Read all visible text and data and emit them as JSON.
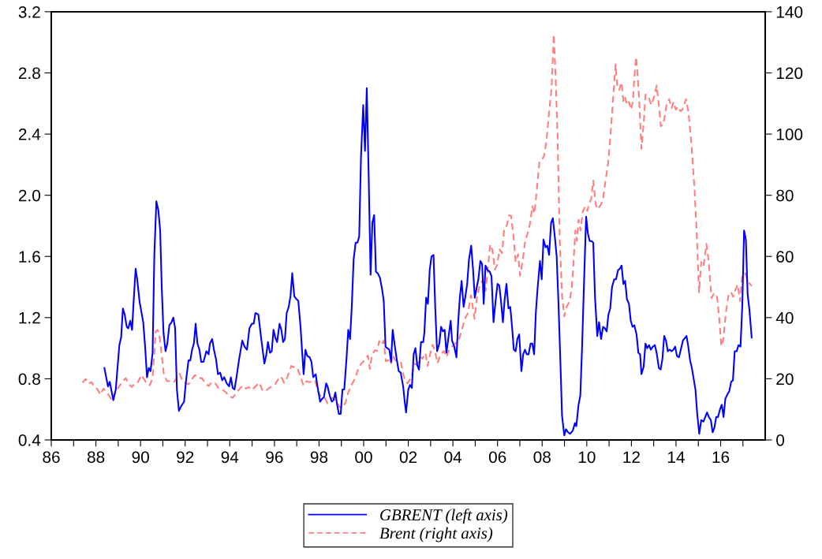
{
  "chart_data": {
    "type": "line",
    "xlim": [
      1986.0,
      2018.0
    ],
    "xticks": [
      {
        "value": 1986,
        "label": "86"
      },
      {
        "value": 1987,
        "label": null
      },
      {
        "value": 1988,
        "label": "88"
      },
      {
        "value": 1989,
        "label": null
      },
      {
        "value": 1990,
        "label": "90"
      },
      {
        "value": 1991,
        "label": null
      },
      {
        "value": 1992,
        "label": "92"
      },
      {
        "value": 1993,
        "label": null
      },
      {
        "value": 1994,
        "label": "94"
      },
      {
        "value": 1995,
        "label": null
      },
      {
        "value": 1996,
        "label": "96"
      },
      {
        "value": 1997,
        "label": null
      },
      {
        "value": 1998,
        "label": "98"
      },
      {
        "value": 1999,
        "label": null
      },
      {
        "value": 2000,
        "label": "00"
      },
      {
        "value": 2001,
        "label": null
      },
      {
        "value": 2002,
        "label": "02"
      },
      {
        "value": 2003,
        "label": null
      },
      {
        "value": 2004,
        "label": "04"
      },
      {
        "value": 2005,
        "label": null
      },
      {
        "value": 2006,
        "label": "06"
      },
      {
        "value": 2007,
        "label": null
      },
      {
        "value": 2008,
        "label": "08"
      },
      {
        "value": 2009,
        "label": null
      },
      {
        "value": 2010,
        "label": "10"
      },
      {
        "value": 2011,
        "label": null
      },
      {
        "value": 2012,
        "label": "12"
      },
      {
        "value": 2013,
        "label": null
      },
      {
        "value": 2014,
        "label": "14"
      },
      {
        "value": 2015,
        "label": null
      },
      {
        "value": 2016,
        "label": "16"
      },
      {
        "value": 2017,
        "label": null
      }
    ],
    "ylim": [
      0.4,
      3.2
    ],
    "yticks": [
      {
        "value": 0.4,
        "label": "0.4"
      },
      {
        "value": 0.8,
        "label": "0.8"
      },
      {
        "value": 1.2,
        "label": "1.2"
      },
      {
        "value": 1.6,
        "label": "1.6"
      },
      {
        "value": 2.0,
        "label": "2.0"
      },
      {
        "value": 2.4,
        "label": "2.4"
      },
      {
        "value": 2.8,
        "label": "2.8"
      },
      {
        "value": 3.2,
        "label": "3.2"
      }
    ],
    "y2lim": [
      0,
      140
    ],
    "y2ticks": [
      0,
      20,
      40,
      60,
      80,
      100,
      120,
      140
    ],
    "grid": false,
    "legend": "bottom",
    "marker": "none",
    "series": [
      {
        "name": "GBRENT (left axis)",
        "color": "#0000ff",
        "line_style": "solid",
        "x": [
          1988.38,
          1988.54,
          1988.62,
          1988.78,
          1988.89,
          1989.05,
          1989.13,
          1989.21,
          1989.29,
          1989.38,
          1989.45,
          1989.54,
          1989.62,
          1989.7,
          1989.78,
          1989.85,
          1989.96,
          1990.12,
          1990.21,
          1990.29,
          1990.37,
          1990.45,
          1990.54,
          1990.62,
          1990.71,
          1990.8,
          1990.88,
          1990.95,
          1991.03,
          1991.12,
          1991.2,
          1991.29,
          1991.39,
          1991.47,
          1991.55,
          1991.63,
          1991.72,
          1991.82,
          1991.95,
          1992.04,
          1992.15,
          1992.23,
          1992.31,
          1992.39,
          1992.47,
          1992.55,
          1992.64,
          1992.72,
          1992.82,
          1992.95,
          1993.05,
          1993.11,
          1993.21,
          1993.29,
          1993.38,
          1993.47,
          1993.57,
          1993.66,
          1993.75,
          1993.86,
          1993.97,
          1994.05,
          1994.13,
          1994.21,
          1994.29,
          1994.42,
          1994.56,
          1994.66,
          1994.77,
          1994.88,
          1994.99,
          1995.07,
          1995.15,
          1995.28,
          1995.41,
          1995.55,
          1995.63,
          1995.71,
          1995.8,
          1995.88,
          1995.96,
          1996.04,
          1996.12,
          1996.23,
          1996.31,
          1996.39,
          1996.47,
          1996.55,
          1996.64,
          1996.72,
          1996.8,
          1996.89,
          1996.99,
          1997.07,
          1997.17,
          1997.25,
          1997.31,
          1997.39,
          1997.47,
          1997.58,
          1997.66,
          1997.74,
          1997.85,
          1997.93,
          1998.05,
          1998.14,
          1998.22,
          1998.32,
          1998.38,
          1998.48,
          1998.57,
          1998.65,
          1998.73,
          1998.81,
          1998.89,
          1998.97,
          1999.05,
          1999.13,
          1999.23,
          1999.31,
          1999.39,
          1999.47,
          1999.55,
          1999.64,
          1999.72,
          1999.8,
          1999.88,
          1999.98,
          2000.06,
          2000.14,
          2000.23,
          2000.31,
          2000.39,
          2000.47,
          2000.55,
          2000.63,
          2000.73,
          2000.82,
          2000.9,
          2000.98,
          2001.06,
          2001.15,
          2001.23,
          2001.3,
          2001.39,
          2001.49,
          2001.57,
          2001.66,
          2001.77,
          2001.84,
          2001.9,
          2002.0,
          2002.08,
          2002.16,
          2002.24,
          2002.32,
          2002.4,
          2002.48,
          2002.57,
          2002.67,
          2002.72,
          2002.8,
          2002.88,
          2002.96,
          2003.04,
          2003.13,
          2003.21,
          2003.29,
          2003.39,
          2003.47,
          2003.55,
          2003.63,
          2003.71,
          2003.8,
          2003.9,
          2003.96,
          2004.06,
          2004.16,
          2004.24,
          2004.31,
          2004.39,
          2004.48,
          2004.56,
          2004.64,
          2004.72,
          2004.82,
          2004.9,
          2004.98,
          2005.07,
          2005.14,
          2005.23,
          2005.31,
          2005.38,
          2005.46,
          2005.55,
          2005.65,
          2005.73,
          2005.82,
          2005.92,
          2006.0,
          2006.08,
          2006.16,
          2006.24,
          2006.32,
          2006.4,
          2006.49,
          2006.57,
          2006.65,
          2006.73,
          2006.81,
          2006.89,
          2006.97,
          2007.07,
          2007.15,
          2007.23,
          2007.31,
          2007.39,
          2007.48,
          2007.56,
          2007.64,
          2007.72,
          2007.8,
          2007.9,
          2007.98,
          2008.06,
          2008.15,
          2008.23,
          2008.31,
          2008.4,
          2008.48,
          2008.58,
          2008.65,
          2008.73,
          2008.83,
          2008.89,
          2008.99,
          2009.07,
          2009.16,
          2009.25,
          2009.37,
          2009.47,
          2009.53,
          2009.63,
          2009.71,
          2009.79,
          2009.87,
          2009.97,
          2010.05,
          2010.13,
          2010.21,
          2010.29,
          2010.37,
          2010.47,
          2010.55,
          2010.64,
          2010.73,
          2010.81,
          2010.89,
          2010.97,
          2011.05,
          2011.13,
          2011.23,
          2011.31,
          2011.4,
          2011.48,
          2011.56,
          2011.64,
          2011.72,
          2011.8,
          2011.89,
          2011.97,
          2012.05,
          2012.13,
          2012.23,
          2012.31,
          2012.39,
          2012.45,
          2012.55,
          2012.63,
          2012.71,
          2012.79,
          2012.87,
          2012.96,
          2013.05,
          2013.13,
          2013.23,
          2013.31,
          2013.39,
          2013.47,
          2013.55,
          2013.63,
          2013.72,
          2013.8,
          2013.88,
          2013.96,
          2014.04,
          2014.13,
          2014.23,
          2014.31,
          2014.47,
          2014.55,
          2014.63,
          2014.71,
          2014.79,
          2014.87,
          2014.95,
          2015.04,
          2015.13,
          2015.23,
          2015.31,
          2015.39,
          2015.47,
          2015.56,
          2015.64,
          2015.72,
          2015.8,
          2015.88,
          2015.97,
          2016.05,
          2016.13,
          2016.21,
          2016.31,
          2016.39,
          2016.47,
          2016.55,
          2016.63,
          2016.72,
          2016.8,
          2016.89,
          2016.97,
          2017.05,
          2017.13,
          2017.21,
          2017.29,
          2017.39
        ],
        "values": [
          0.87,
          0.75,
          0.78,
          0.66,
          0.73,
          1.02,
          1.07,
          1.26,
          1.22,
          1.14,
          1.13,
          1.18,
          1.12,
          1.33,
          1.52,
          1.45,
          1.3,
          1.17,
          1.0,
          0.81,
          0.87,
          0.85,
          0.97,
          1.62,
          1.96,
          1.9,
          1.77,
          1.4,
          1.1,
          0.98,
          1.03,
          1.15,
          1.17,
          1.2,
          1.13,
          0.73,
          0.59,
          0.62,
          0.65,
          0.79,
          0.92,
          0.92,
          0.99,
          1.03,
          1.16,
          1.03,
          0.99,
          0.91,
          0.91,
          0.98,
          0.96,
          1.03,
          1.06,
          0.99,
          0.93,
          0.83,
          0.84,
          0.79,
          0.81,
          0.77,
          0.75,
          0.81,
          0.74,
          0.73,
          0.8,
          0.93,
          1.05,
          1.01,
          0.99,
          1.13,
          1.16,
          1.16,
          1.23,
          1.22,
          1.06,
          0.9,
          0.95,
          1.04,
          0.97,
          0.98,
          1.12,
          1.07,
          1.04,
          1.16,
          1.12,
          1.04,
          1.06,
          1.23,
          1.27,
          1.34,
          1.49,
          1.34,
          1.32,
          1.31,
          1.14,
          0.96,
          0.83,
          0.99,
          0.95,
          0.94,
          0.91,
          0.81,
          0.83,
          0.75,
          0.65,
          0.67,
          0.68,
          0.77,
          0.75,
          0.69,
          0.65,
          0.66,
          0.71,
          0.63,
          0.57,
          0.57,
          0.73,
          0.73,
          0.93,
          1.12,
          1.06,
          1.28,
          1.58,
          1.69,
          1.69,
          1.73,
          2.25,
          2.59,
          2.29,
          2.7,
          2.09,
          1.48,
          1.82,
          1.87,
          1.5,
          1.49,
          1.46,
          1.39,
          1.31,
          1.01,
          1.0,
          0.99,
          0.91,
          1.12,
          1.02,
          0.92,
          0.85,
          0.84,
          0.75,
          0.65,
          0.58,
          0.73,
          0.76,
          0.74,
          0.96,
          1.0,
          0.89,
          0.86,
          1.04,
          1.04,
          1.1,
          1.33,
          1.29,
          1.51,
          1.6,
          1.61,
          1.26,
          0.98,
          1.03,
          1.14,
          1.11,
          1.12,
          0.97,
          1.07,
          1.18,
          1.05,
          1.01,
          0.94,
          1.18,
          1.33,
          1.44,
          1.27,
          1.34,
          1.42,
          1.58,
          1.67,
          1.52,
          1.33,
          1.4,
          1.45,
          1.57,
          1.55,
          1.29,
          1.54,
          1.51,
          1.5,
          1.47,
          1.17,
          1.32,
          1.42,
          1.41,
          1.3,
          1.17,
          1.32,
          1.42,
          1.26,
          1.27,
          1.14,
          0.99,
          0.98,
          1.06,
          1.09,
          0.85,
          0.96,
          0.99,
          0.96,
          0.96,
          1.03,
          1.03,
          0.96,
          1.24,
          1.4,
          1.57,
          1.45,
          1.71,
          1.66,
          1.67,
          1.61,
          1.82,
          1.85,
          1.71,
          1.6,
          1.3,
          0.85,
          0.56,
          0.43,
          0.47,
          0.45,
          0.44,
          0.46,
          0.51,
          0.49,
          0.63,
          0.69,
          1.01,
          1.4,
          1.86,
          1.75,
          1.7,
          1.7,
          1.69,
          1.33,
          1.08,
          1.17,
          1.06,
          1.14,
          1.13,
          1.11,
          1.22,
          1.26,
          1.4,
          1.45,
          1.45,
          1.51,
          1.52,
          1.54,
          1.42,
          1.44,
          1.32,
          1.29,
          1.18,
          1.14,
          1.15,
          1.09,
          0.97,
          0.96,
          0.83,
          0.88,
          1.03,
          1.0,
          1.02,
          0.99,
          1.01,
          1.02,
          0.97,
          0.87,
          0.86,
          0.93,
          1.08,
          1.05,
          0.98,
          0.99,
          0.98,
          0.99,
          1.01,
          0.95,
          0.94,
          1.0,
          1.05,
          1.08,
          1.01,
          0.92,
          0.87,
          0.8,
          0.73,
          0.57,
          0.44,
          0.53,
          0.52,
          0.55,
          0.58,
          0.55,
          0.53,
          0.45,
          0.48,
          0.55,
          0.55,
          0.6,
          0.63,
          0.55,
          0.67,
          0.7,
          0.72,
          0.78,
          0.79,
          0.98,
          0.98,
          1.02,
          1.01,
          1.28,
          1.77,
          1.71,
          1.35,
          1.25,
          1.07
        ]
      },
      {
        "name": "Brent (right axis)",
        "color": "#ff7f7f",
        "line_style": "dashed",
        "axis": "y2",
        "x": [
          1987.4,
          1987.54,
          1987.67,
          1987.8,
          1987.94,
          1988.07,
          1988.2,
          1988.34,
          1988.54,
          1988.74,
          1988.87,
          1989.07,
          1989.21,
          1989.34,
          1989.47,
          1989.61,
          1989.77,
          1989.88,
          1990.04,
          1990.17,
          1990.3,
          1990.41,
          1990.54,
          1990.68,
          1990.76,
          1990.84,
          1990.95,
          1991.05,
          1991.19,
          1991.35,
          1991.48,
          1991.61,
          1991.75,
          1991.88,
          1992.02,
          1992.15,
          1992.28,
          1992.44,
          1992.58,
          1992.75,
          1992.89,
          1993.06,
          1993.19,
          1993.35,
          1993.51,
          1993.69,
          1993.82,
          1993.96,
          1994.13,
          1994.29,
          1994.45,
          1994.58,
          1994.72,
          1994.85,
          1994.99,
          1995.12,
          1995.33,
          1995.47,
          1995.65,
          1995.83,
          1996.0,
          1996.16,
          1996.3,
          1996.43,
          1996.56,
          1996.76,
          1996.9,
          1997.03,
          1997.17,
          1997.3,
          1997.43,
          1997.57,
          1997.82,
          1997.96,
          1998.09,
          1998.25,
          1998.38,
          1998.59,
          1998.76,
          1998.92,
          1999.05,
          1999.19,
          1999.32,
          1999.45,
          1999.62,
          1999.79,
          1999.92,
          2000.1,
          2000.19,
          2000.28,
          2000.36,
          2000.5,
          2000.59,
          2000.7,
          2000.79,
          2000.9,
          2000.99,
          2001.11,
          2001.22,
          2001.3,
          2001.41,
          2001.57,
          2001.66,
          2001.77,
          2001.86,
          2001.97,
          2002.08,
          2002.18,
          2002.29,
          2002.4,
          2002.53,
          2002.64,
          2002.77,
          2002.87,
          2003.0,
          2003.09,
          2003.2,
          2003.31,
          2003.44,
          2003.6,
          2003.71,
          2003.84,
          2003.98,
          2004.14,
          2004.27,
          2004.4,
          2004.54,
          2004.67,
          2004.81,
          2004.97,
          2005.07,
          2005.21,
          2005.34,
          2005.47,
          2005.58,
          2005.67,
          2005.77,
          2005.88,
          2005.98,
          2006.09,
          2006.2,
          2006.3,
          2006.41,
          2006.52,
          2006.61,
          2006.72,
          2006.81,
          2006.92,
          2007.01,
          2007.12,
          2007.24,
          2007.35,
          2007.45,
          2007.56,
          2007.65,
          2007.75,
          2007.88,
          2007.99,
          2008.08,
          2008.19,
          2008.31,
          2008.42,
          2008.52,
          2008.6,
          2008.69,
          2008.79,
          2008.89,
          2008.99,
          2009.09,
          2009.23,
          2009.32,
          2009.4,
          2009.49,
          2009.56,
          2009.63,
          2009.72,
          2009.83,
          2009.93,
          2010.03,
          2010.09,
          2010.2,
          2010.29,
          2010.4,
          2010.49,
          2010.63,
          2010.73,
          2010.84,
          2010.96,
          2011.05,
          2011.16,
          2011.29,
          2011.37,
          2011.45,
          2011.56,
          2011.64,
          2011.72,
          2011.8,
          2011.89,
          2011.99,
          2012.07,
          2012.13,
          2012.21,
          2012.29,
          2012.36,
          2012.45,
          2012.56,
          2012.63,
          2012.76,
          2012.89,
          2013.03,
          2013.13,
          2013.23,
          2013.32,
          2013.43,
          2013.56,
          2013.69,
          2013.8,
          2013.89,
          2013.99,
          2014.09,
          2014.2,
          2014.29,
          2014.45,
          2014.56,
          2014.69,
          2014.83,
          2014.93,
          2015.03,
          2015.13,
          2015.23,
          2015.36,
          2015.45,
          2015.59,
          2015.69,
          2015.83,
          2015.93,
          2016.03,
          2016.12,
          2016.23,
          2016.36,
          2016.47,
          2016.56,
          2016.65,
          2016.76,
          2016.87,
          2016.96,
          2017.09,
          2017.23,
          2017.39
        ],
        "values": [
          18.7,
          19.9,
          18.4,
          18.9,
          17.3,
          16.6,
          14.8,
          16.8,
          15.0,
          12.8,
          15.8,
          17.8,
          19.2,
          20.2,
          18.2,
          17.3,
          18.7,
          18.9,
          21.2,
          19.7,
          18.2,
          17.9,
          20.2,
          35.5,
          36.0,
          34.5,
          27.6,
          21.2,
          19.2,
          19.2,
          18.7,
          20.2,
          21.7,
          19.2,
          18.5,
          18.2,
          19.7,
          21.2,
          20.2,
          20.2,
          18.7,
          17.6,
          18.9,
          18.5,
          16.8,
          16.3,
          15.6,
          14.3,
          13.8,
          15.3,
          16.8,
          17.8,
          16.8,
          17.3,
          16.3,
          17.3,
          18.7,
          16.0,
          16.3,
          17.3,
          17.8,
          19.7,
          20.7,
          18.7,
          20.2,
          24.2,
          23.7,
          23.5,
          20.7,
          17.8,
          19.2,
          18.9,
          19.5,
          15.8,
          14.0,
          13.8,
          12.0,
          13.8,
          12.8,
          10.8,
          10.4,
          12.3,
          15.8,
          17.9,
          20.2,
          23.9,
          25.1,
          26.6,
          27.6,
          23.2,
          27.4,
          29.3,
          29.1,
          32.3,
          31.1,
          32.5,
          25.8,
          26.1,
          24.7,
          27.8,
          26.1,
          25.6,
          25.6,
          21.7,
          19.2,
          18.5,
          19.9,
          21.7,
          24.9,
          24.7,
          27.1,
          26.6,
          28.4,
          24.2,
          28.8,
          31.1,
          29.1,
          25.1,
          27.8,
          29.1,
          27.1,
          29.6,
          30.6,
          31.8,
          32.7,
          36.0,
          39.6,
          41.4,
          47.3,
          39.6,
          46.4,
          50.8,
          52.3,
          48.8,
          57.2,
          63.9,
          62.1,
          55.7,
          57.2,
          62.3,
          61.1,
          69.0,
          70.0,
          73.5,
          73.2,
          66.1,
          58.2,
          60.7,
          53.7,
          58.2,
          65.1,
          67.6,
          70.5,
          76.4,
          74.0,
          80.9,
          91.2,
          91.7,
          92.7,
          97.6,
          107.0,
          114.9,
          132.6,
          119.3,
          99.6,
          65.1,
          47.3,
          40.4,
          43.4,
          45.4,
          49.3,
          57.2,
          68.5,
          65.1,
          72.0,
          68.5,
          74.9,
          76.4,
          74.9,
          76.9,
          78.9,
          84.8,
          76.9,
          75.4,
          76.9,
          78.9,
          84.8,
          90.7,
          98.6,
          109.5,
          122.8,
          115.4,
          114.4,
          116.9,
          110.5,
          111.9,
          109.5,
          110.5,
          108.0,
          110.9,
          118.3,
          125.2,
          118.3,
          109.5,
          95.2,
          104.5,
          112.9,
          112.4,
          109.5,
          112.4,
          115.9,
          109.5,
          102.6,
          103.1,
          109.0,
          111.4,
          108.5,
          110.5,
          108.0,
          109.0,
          107.5,
          108.0,
          111.4,
          107.0,
          96.6,
          81.9,
          67.1,
          48.3,
          58.2,
          56.7,
          64.1,
          59.2,
          46.4,
          47.8,
          47.3,
          40.4,
          30.6,
          33.0,
          41.4,
          47.8,
          48.3,
          46.8,
          48.8,
          50.8,
          45.4,
          53.3,
          54.7,
          51.8,
          50.3
        ]
      }
    ]
  }
}
